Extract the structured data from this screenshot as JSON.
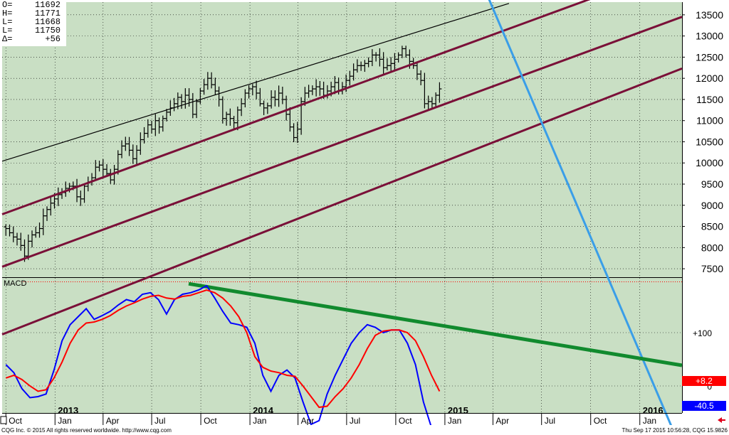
{
  "ohlc": [
    {
      "label": "O=",
      "value": "11692"
    },
    {
      "label": "H=",
      "value": "11771"
    },
    {
      "label": "L=",
      "value": "11668"
    },
    {
      "label": "L=",
      "value": "11750"
    },
    {
      "label": "Δ=",
      "value": "+56"
    }
  ],
  "footer": {
    "left": "CQG Inc. © 2015 All rights reserved worldwide. http://www.cqg.com",
    "right": "Thu Sep 17 2015 10:56:28, CQG 15.9826"
  },
  "colors": {
    "plot_bg": "#c9dfc4",
    "price_bars": "#000000",
    "channel": "#7a1038",
    "upper_channel": "#000000",
    "downtrend": "#3a9ee8",
    "macd_line": "#0000ff",
    "signal_line": "#ff0000",
    "macd_trendline": "#118a2e"
  },
  "chart_data": [
    {
      "type": "ohlc",
      "x_tick_labels": [
        {
          "label": "Oct",
          "date": "2012-10"
        },
        {
          "label": "Jan",
          "date": "2013-01"
        },
        {
          "label": "Apr",
          "date": "2013-04"
        },
        {
          "label": "Jul",
          "date": "2013-07"
        },
        {
          "label": "Oct",
          "date": "2013-10"
        },
        {
          "label": "Jan",
          "date": "2014-01"
        },
        {
          "label": "Apr",
          "date": "2014-04"
        },
        {
          "label": "Jul",
          "date": "2014-07"
        },
        {
          "label": "Oct",
          "date": "2014-10"
        },
        {
          "label": "Jan",
          "date": "2015-01"
        },
        {
          "label": "Apr",
          "date": "2015-04"
        },
        {
          "label": "Jul",
          "date": "2015-07"
        },
        {
          "label": "Oct",
          "date": "2015-10"
        },
        {
          "label": "Jan",
          "date": "2016-01"
        }
      ],
      "year_labels": [
        {
          "label": "2013",
          "date": "2013-01"
        },
        {
          "label": "2014",
          "date": "2014-01"
        },
        {
          "label": "2015",
          "date": "2015-01"
        },
        {
          "label": "2016",
          "date": "2016-01"
        }
      ],
      "y_ticks": [
        7500,
        8000,
        8500,
        9000,
        9500,
        10000,
        10500,
        11000,
        11500,
        12000,
        12500,
        13000,
        13500
      ],
      "ylim": [
        7300,
        13800
      ],
      "weekly_closes": [
        8450,
        8350,
        8250,
        8200,
        8050,
        7800,
        8150,
        8300,
        8350,
        8450,
        8750,
        8900,
        9050,
        9150,
        9250,
        9300,
        9400,
        9450,
        9450,
        9200,
        9150,
        9450,
        9550,
        9650,
        9900,
        9950,
        9850,
        9750,
        9600,
        9850,
        10200,
        10400,
        10450,
        10300,
        10100,
        10300,
        10550,
        10700,
        10900,
        10800,
        11000,
        10850,
        11050,
        11200,
        11300,
        11400,
        11550,
        11450,
        11600,
        11500,
        11150,
        11450,
        11700,
        11850,
        12000,
        11850,
        11700,
        11500,
        11050,
        11150,
        11050,
        10950,
        11250,
        11400,
        11650,
        11750,
        11800,
        11650,
        11400,
        11300,
        11350,
        11550,
        11500,
        11650,
        11500,
        11150,
        10850,
        10600,
        10800,
        11450,
        11650,
        11700,
        11750,
        11800,
        11750,
        11600,
        11700,
        11800,
        11900,
        11700,
        11800,
        11950,
        12050,
        12200,
        12300,
        12300,
        12350,
        12400,
        12550,
        12550,
        12450,
        12250,
        12300,
        12350,
        12450,
        12550,
        12700,
        12550,
        12400,
        12300,
        12100,
        11950,
        11400,
        11450,
        11400,
        11600,
        11750
      ],
      "lines": [
        {
          "start": [
            "2012-09",
            9950
          ],
          "end": [
            "2015-05",
            13770
          ]
        },
        {
          "start": [
            "2012-09",
            8680
          ],
          "end": [
            "2015-09",
            13740
          ]
        },
        {
          "start": [
            "2012-09",
            7440
          ],
          "end": [
            "2015-09",
            12520
          ]
        },
        {
          "start": [
            "2013-07",
            7330
          ],
          "end": [
            "2015-09",
            11240
          ]
        },
        {
          "start": [
            "2015-04",
            13650
          ],
          "end": [
            "2015-09",
            9130
          ]
        }
      ]
    },
    {
      "type": "line",
      "title": "MACD",
      "y_ticks": [
        {
          "value": 100,
          "label": "+100"
        },
        {
          "value": 0,
          "label": "0"
        }
      ],
      "series": [
        {
          "color": "#0000ff",
          "values": [
            40,
            25,
            -5,
            -22,
            -20,
            -15,
            30,
            85,
            115,
            130,
            145,
            125,
            132,
            140,
            152,
            162,
            158,
            172,
            175,
            162,
            135,
            162,
            172,
            175,
            180,
            188,
            165,
            140,
            118,
            115,
            110,
            80,
            20,
            -10,
            20,
            30,
            15,
            -30,
            -72,
            -65,
            -15,
            20,
            50,
            80,
            100,
            115,
            110,
            100,
            105,
            105,
            80,
            40,
            -30,
            -78,
            -94
          ]
        },
        {
          "color": "#ff0000",
          "values": [
            15,
            20,
            12,
            0,
            -10,
            -7,
            15,
            45,
            80,
            105,
            118,
            120,
            125,
            132,
            142,
            150,
            156,
            163,
            168,
            170,
            165,
            163,
            168,
            170,
            175,
            180,
            175,
            165,
            150,
            130,
            100,
            55,
            35,
            28,
            25,
            20,
            18,
            0,
            -20,
            -40,
            -38,
            -20,
            -5,
            15,
            40,
            70,
            95,
            103,
            105,
            105,
            100,
            85,
            55,
            20,
            -10
          ]
        }
      ],
      "value_labels": [
        {
          "label": "+8.2",
          "color": "#ff0000"
        },
        {
          "label": "-40.5",
          "color": "#0000ff"
        }
      ],
      "trendline": {
        "start": [
          "2013-10",
          188
        ],
        "end": [
          "2015-09",
          72
        ]
      }
    }
  ]
}
